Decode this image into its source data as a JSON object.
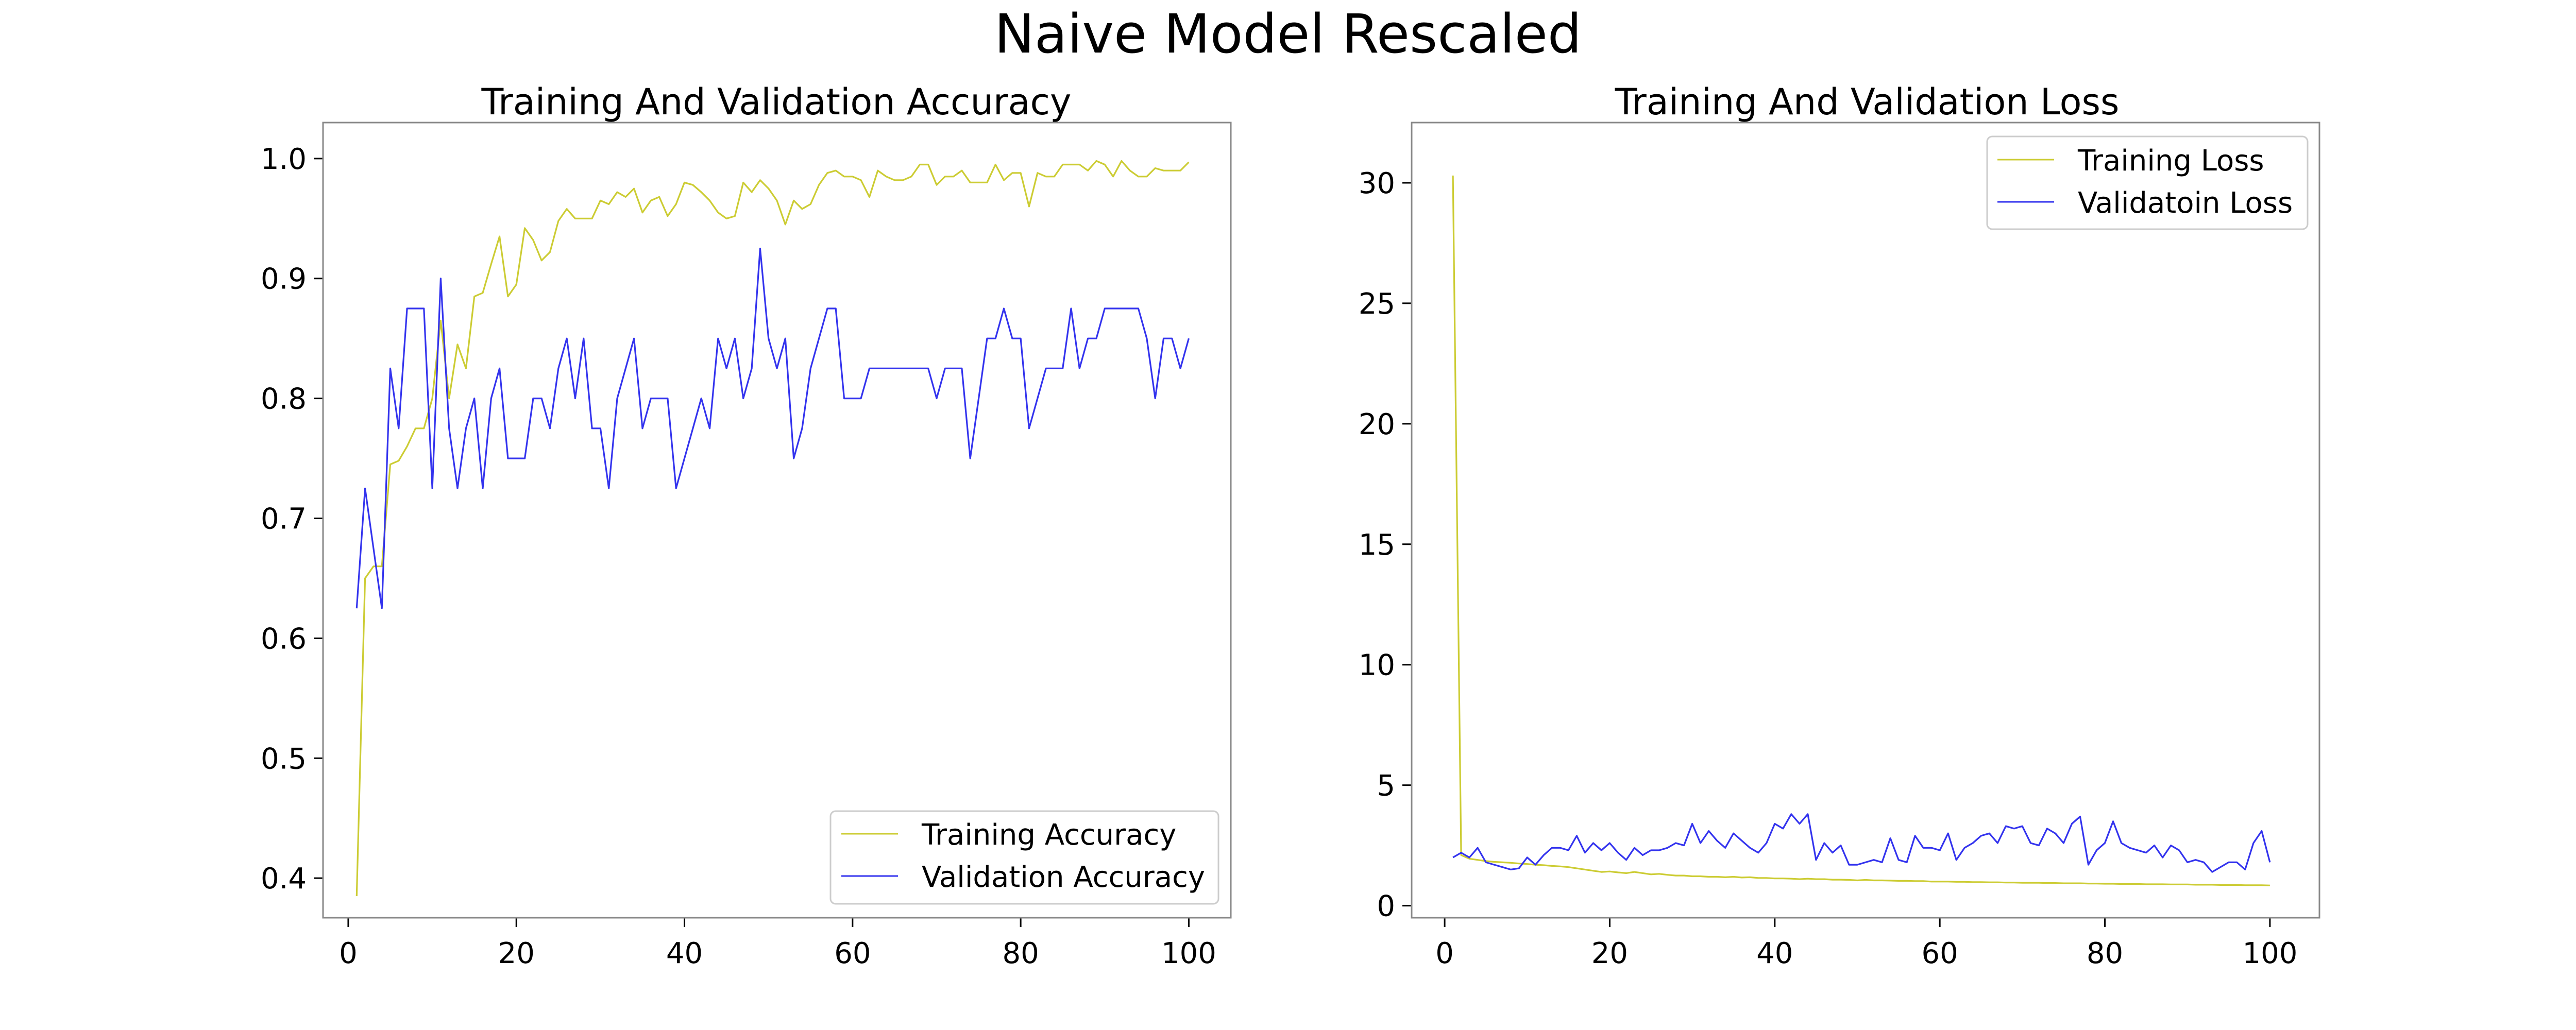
{
  "figure": {
    "title": "Naive Model Rescaled"
  },
  "chart_data": [
    {
      "type": "line",
      "title": "Training And Validation Accuracy",
      "xlabel": "",
      "ylabel": "",
      "xlim": [
        -3,
        105
      ],
      "ylim": [
        0.367,
        1.03
      ],
      "xticks": [
        0,
        20,
        40,
        60,
        80,
        100
      ],
      "yticks": [
        0.4,
        0.5,
        0.6,
        0.7,
        0.8,
        0.9,
        1.0
      ],
      "ytick_decimals": 1,
      "grid": false,
      "legend": "lower-right",
      "x": [
        1,
        2,
        3,
        4,
        5,
        6,
        7,
        8,
        9,
        10,
        11,
        12,
        13,
        14,
        15,
        16,
        17,
        18,
        19,
        20,
        21,
        22,
        23,
        24,
        25,
        26,
        27,
        28,
        29,
        30,
        31,
        32,
        33,
        34,
        35,
        36,
        37,
        38,
        39,
        40,
        41,
        42,
        43,
        44,
        45,
        46,
        47,
        48,
        49,
        50,
        51,
        52,
        53,
        54,
        55,
        56,
        57,
        58,
        59,
        60,
        61,
        62,
        63,
        64,
        65,
        66,
        67,
        68,
        69,
        70,
        71,
        72,
        73,
        74,
        75,
        76,
        77,
        78,
        79,
        80,
        81,
        82,
        83,
        84,
        85,
        86,
        87,
        88,
        89,
        90,
        91,
        92,
        93,
        94,
        95,
        96,
        97,
        98,
        99,
        100
      ],
      "series": [
        {
          "name": "Training Accuracy",
          "color": "#cccc33",
          "values": [
            0.385,
            0.65,
            0.66,
            0.66,
            0.745,
            0.748,
            0.76,
            0.775,
            0.775,
            0.8,
            0.865,
            0.8,
            0.845,
            0.825,
            0.885,
            0.888,
            0.912,
            0.935,
            0.885,
            0.895,
            0.942,
            0.932,
            0.915,
            0.922,
            0.948,
            0.958,
            0.95,
            0.95,
            0.95,
            0.965,
            0.962,
            0.972,
            0.968,
            0.975,
            0.955,
            0.965,
            0.968,
            0.952,
            0.962,
            0.98,
            0.978,
            0.972,
            0.965,
            0.955,
            0.95,
            0.952,
            0.98,
            0.972,
            0.982,
            0.975,
            0.965,
            0.945,
            0.965,
            0.958,
            0.962,
            0.978,
            0.988,
            0.99,
            0.985,
            0.985,
            0.982,
            0.968,
            0.99,
            0.985,
            0.982,
            0.982,
            0.985,
            0.995,
            0.995,
            0.978,
            0.985,
            0.985,
            0.99,
            0.98,
            0.98,
            0.98,
            0.995,
            0.982,
            0.988,
            0.988,
            0.96,
            0.988,
            0.985,
            0.985,
            0.995,
            0.995,
            0.995,
            0.99,
            0.998,
            0.995,
            0.985,
            0.998,
            0.99,
            0.985,
            0.985,
            0.992,
            0.99,
            0.99,
            0.99,
            0.997
          ]
        },
        {
          "name": "Validation Accuracy",
          "color": "#3333ee",
          "values": [
            0.625,
            0.725,
            0.675,
            0.625,
            0.825,
            0.775,
            0.875,
            0.875,
            0.875,
            0.725,
            0.9,
            0.775,
            0.725,
            0.775,
            0.8,
            0.725,
            0.8,
            0.825,
            0.75,
            0.75,
            0.75,
            0.8,
            0.8,
            0.775,
            0.825,
            0.85,
            0.8,
            0.85,
            0.775,
            0.775,
            0.725,
            0.8,
            0.825,
            0.85,
            0.775,
            0.8,
            0.8,
            0.8,
            0.725,
            0.75,
            0.775,
            0.8,
            0.775,
            0.85,
            0.825,
            0.85,
            0.8,
            0.825,
            0.925,
            0.85,
            0.825,
            0.85,
            0.75,
            0.775,
            0.825,
            0.85,
            0.875,
            0.875,
            0.8,
            0.8,
            0.8,
            0.825,
            0.825,
            0.825,
            0.825,
            0.825,
            0.825,
            0.825,
            0.825,
            0.8,
            0.825,
            0.825,
            0.825,
            0.75,
            0.8,
            0.85,
            0.85,
            0.875,
            0.85,
            0.85,
            0.775,
            0.8,
            0.825,
            0.825,
            0.825,
            0.875,
            0.825,
            0.85,
            0.85,
            0.875,
            0.875,
            0.875,
            0.875,
            0.875,
            0.85,
            0.8,
            0.85,
            0.85,
            0.825,
            0.85
          ]
        }
      ]
    },
    {
      "type": "line",
      "title": "Training And Validation Loss",
      "xlabel": "",
      "ylabel": "",
      "xlim": [
        -4,
        106
      ],
      "ylim": [
        -0.5,
        32.5
      ],
      "xticks": [
        0,
        20,
        40,
        60,
        80,
        100
      ],
      "yticks": [
        0,
        5,
        10,
        15,
        20,
        25,
        30
      ],
      "ytick_decimals": 0,
      "grid": false,
      "legend": "upper-right",
      "x": [
        1,
        2,
        3,
        4,
        5,
        6,
        7,
        8,
        9,
        10,
        11,
        12,
        13,
        14,
        15,
        16,
        17,
        18,
        19,
        20,
        21,
        22,
        23,
        24,
        25,
        26,
        27,
        28,
        29,
        30,
        31,
        32,
        33,
        34,
        35,
        36,
        37,
        38,
        39,
        40,
        41,
        42,
        43,
        44,
        45,
        46,
        47,
        48,
        49,
        50,
        51,
        52,
        53,
        54,
        55,
        56,
        57,
        58,
        59,
        60,
        61,
        62,
        63,
        64,
        65,
        66,
        67,
        68,
        69,
        70,
        71,
        72,
        73,
        74,
        75,
        76,
        77,
        78,
        79,
        80,
        81,
        82,
        83,
        84,
        85,
        86,
        87,
        88,
        89,
        90,
        91,
        92,
        93,
        94,
        95,
        96,
        97,
        98,
        99,
        100
      ],
      "series": [
        {
          "name": "Training Loss",
          "color": "#cccc33",
          "values": [
            30.3,
            2.1,
            1.95,
            1.9,
            1.85,
            1.82,
            1.8,
            1.78,
            1.75,
            1.73,
            1.7,
            1.68,
            1.65,
            1.63,
            1.6,
            1.55,
            1.5,
            1.45,
            1.4,
            1.42,
            1.38,
            1.35,
            1.4,
            1.35,
            1.3,
            1.32,
            1.28,
            1.25,
            1.25,
            1.22,
            1.22,
            1.2,
            1.2,
            1.18,
            1.2,
            1.17,
            1.18,
            1.15,
            1.15,
            1.13,
            1.13,
            1.12,
            1.1,
            1.12,
            1.1,
            1.1,
            1.08,
            1.08,
            1.07,
            1.05,
            1.07,
            1.05,
            1.05,
            1.04,
            1.03,
            1.03,
            1.02,
            1.02,
            1.0,
            1.0,
            1.0,
            0.99,
            0.99,
            0.98,
            0.98,
            0.97,
            0.97,
            0.96,
            0.96,
            0.95,
            0.95,
            0.95,
            0.94,
            0.94,
            0.93,
            0.93,
            0.93,
            0.92,
            0.92,
            0.91,
            0.91,
            0.9,
            0.9,
            0.9,
            0.89,
            0.89,
            0.89,
            0.88,
            0.88,
            0.88,
            0.87,
            0.87,
            0.87,
            0.86,
            0.86,
            0.86,
            0.85,
            0.85,
            0.85,
            0.84
          ]
        },
        {
          "name": "Validatoin Loss",
          "color": "#3333ee",
          "values": [
            2.0,
            2.2,
            2.0,
            2.4,
            1.8,
            1.7,
            1.6,
            1.5,
            1.55,
            2.0,
            1.7,
            2.1,
            2.4,
            2.4,
            2.3,
            2.9,
            2.2,
            2.6,
            2.3,
            2.6,
            2.2,
            1.9,
            2.4,
            2.1,
            2.3,
            2.3,
            2.4,
            2.6,
            2.5,
            3.4,
            2.6,
            3.1,
            2.7,
            2.4,
            3.0,
            2.7,
            2.4,
            2.2,
            2.6,
            3.4,
            3.2,
            3.8,
            3.4,
            3.8,
            1.9,
            2.6,
            2.2,
            2.5,
            1.7,
            1.7,
            1.8,
            1.9,
            1.8,
            2.8,
            1.9,
            1.8,
            2.9,
            2.4,
            2.4,
            2.3,
            3.0,
            1.9,
            2.4,
            2.6,
            2.9,
            3.0,
            2.6,
            3.3,
            3.2,
            3.3,
            2.6,
            2.5,
            3.2,
            3.0,
            2.6,
            3.4,
            3.7,
            1.7,
            2.3,
            2.6,
            3.5,
            2.6,
            2.4,
            2.3,
            2.2,
            2.5,
            2.0,
            2.5,
            2.3,
            1.8,
            1.9,
            1.8,
            1.4,
            1.6,
            1.8,
            1.8,
            1.5,
            2.6,
            3.1,
            1.8
          ]
        }
      ]
    }
  ]
}
